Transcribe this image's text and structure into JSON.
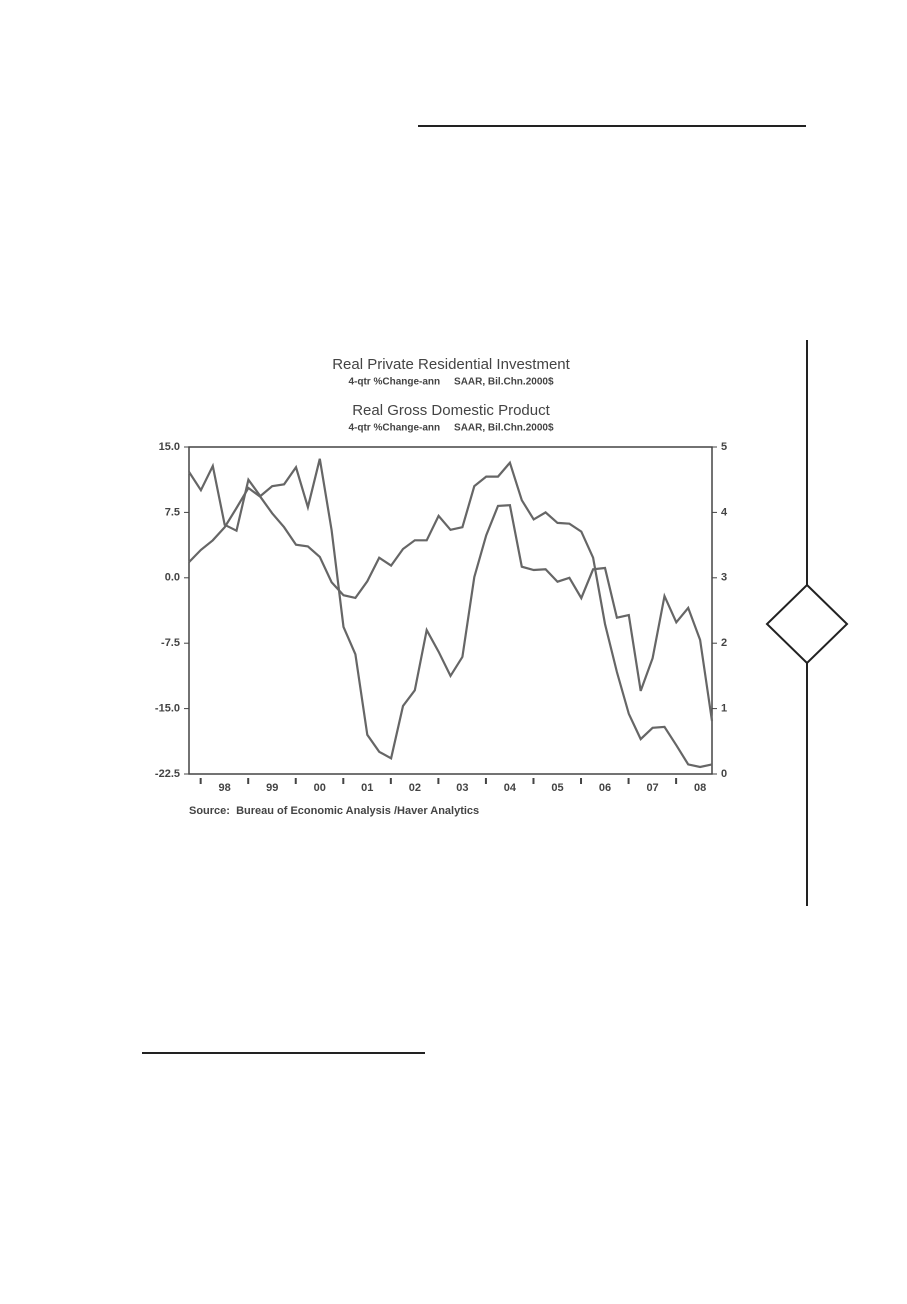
{
  "chart_data": {
    "type": "line",
    "series": [
      {
        "name": "Real Private Residential Investment",
        "note": "4-qtr %Change-ann     SAAR, Bil.Chn.2000$",
        "color": "#666666",
        "axis": "y",
        "values": [
          1.8,
          3.2,
          4.3,
          5.8,
          8.0,
          10.3,
          9.3,
          7.4,
          5.8,
          3.8,
          3.6,
          2.4,
          -0.5,
          -2.0,
          -2.3,
          -0.4,
          2.3,
          1.4,
          3.3,
          4.3,
          4.3,
          7.1,
          5.5,
          5.8,
          10.5,
          11.6,
          11.6,
          13.2,
          8.9,
          6.7,
          7.5,
          6.3,
          6.2,
          5.3,
          2.3,
          -5.3,
          -10.8,
          -15.6,
          -18.5,
          -17.2,
          -17.1,
          -19.2,
          -21.4,
          -21.7,
          -21.4
        ]
      },
      {
        "name": "Real Gross Domestic Product",
        "note": "4-qtr %Change-ann     SAAR, Bil.Chn.2000$",
        "color": "#666666",
        "axis": "y2",
        "values": [
          4.62,
          4.34,
          4.71,
          3.81,
          3.72,
          4.5,
          4.25,
          4.4,
          4.43,
          4.69,
          4.08,
          4.82,
          3.73,
          2.25,
          1.83,
          0.6,
          0.34,
          0.24,
          1.04,
          1.28,
          2.2,
          1.87,
          1.5,
          1.79,
          3.01,
          3.65,
          4.1,
          4.11,
          3.17,
          3.12,
          3.13,
          2.94,
          3.0,
          2.69,
          3.13,
          3.15,
          2.39,
          2.43,
          1.27,
          1.77,
          2.72,
          2.32,
          2.54,
          2.05,
          0.81
        ]
      }
    ],
    "x": [
      1997.75,
      1998.0,
      1998.25,
      1998.5,
      1998.75,
      1999.0,
      1999.25,
      1999.5,
      1999.75,
      2000.0,
      2000.25,
      2000.5,
      2000.75,
      2001.0,
      2001.25,
      2001.5,
      2001.75,
      2002.0,
      2002.25,
      2002.5,
      2002.75,
      2003.0,
      2003.25,
      2003.5,
      2003.75,
      2004.0,
      2004.25,
      2004.5,
      2004.75,
      2005.0,
      2005.25,
      2005.5,
      2005.75,
      2006.0,
      2006.25,
      2006.5,
      2006.75,
      2007.0,
      2007.25,
      2007.5,
      2007.75,
      2008.0,
      2008.25,
      2008.5,
      2008.75
    ],
    "xlim": [
      1997.75,
      2008.75
    ],
    "xticks": [
      {
        "value": 1998.5,
        "label": "98"
      },
      {
        "value": 1999.5,
        "label": "99"
      },
      {
        "value": 2000.5,
        "label": "00"
      },
      {
        "value": 2001.5,
        "label": "01"
      },
      {
        "value": 2002.5,
        "label": "02"
      },
      {
        "value": 2003.5,
        "label": "03"
      },
      {
        "value": 2004.5,
        "label": "04"
      },
      {
        "value": 2005.5,
        "label": "05"
      },
      {
        "value": 2006.5,
        "label": "06"
      },
      {
        "value": 2007.5,
        "label": "07"
      },
      {
        "value": 2008.5,
        "label": "08"
      }
    ],
    "ylim": [
      -22.5,
      15
    ],
    "yticks": [
      {
        "value": 15,
        "label": "15.0"
      },
      7.5,
      {
        "value": 0,
        "label": "0.0"
      },
      -7.5,
      {
        "value": -15,
        "label": "-15.0"
      },
      -22.5
    ],
    "y2lim": [
      0,
      5
    ],
    "y2ticks": [
      0,
      1,
      2,
      3,
      4,
      5
    ],
    "source": "Source:  Bureau of Economic Analysis /Haver Analytics"
  }
}
